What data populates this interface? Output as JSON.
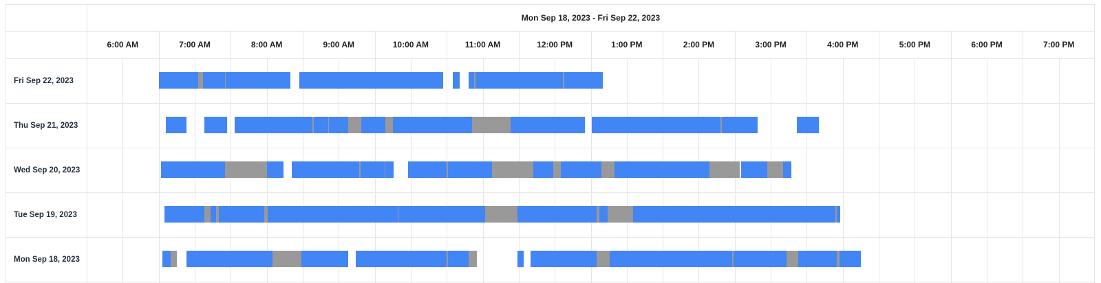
{
  "header": {
    "title": "Mon Sep 18, 2023 - Fri Sep 22, 2023"
  },
  "hours": [
    "6:00 AM",
    "7:00 AM",
    "8:00 AM",
    "9:00 AM",
    "10:00 AM",
    "11:00 AM",
    "12:00 PM",
    "1:00 PM",
    "2:00 PM",
    "3:00 PM",
    "4:00 PM",
    "5:00 PM",
    "6:00 PM",
    "7:00 PM"
  ],
  "colors": {
    "active": "#4285f4",
    "idle": "#999999",
    "grid": "#e6e6e6"
  },
  "rows": [
    {
      "label": "Fri Sep 22, 2023",
      "segments": [
        [
          "07:00",
          "07:33",
          "active"
        ],
        [
          "07:33",
          "07:37",
          "idle"
        ],
        [
          "07:37",
          "07:55",
          "active"
        ],
        [
          "07:55",
          "07:56",
          "idle"
        ],
        [
          "07:56",
          "08:50",
          "active"
        ],
        [
          "08:57",
          "10:57",
          "active"
        ],
        [
          "11:05",
          "11:11",
          "active"
        ],
        [
          "11:18",
          "11:23",
          "active"
        ],
        [
          "11:23",
          "11:24",
          "idle"
        ],
        [
          "11:24",
          "12:37",
          "active"
        ],
        [
          "12:37",
          "12:38",
          "idle"
        ],
        [
          "12:38",
          "13:10",
          "active"
        ]
      ]
    },
    {
      "label": "Thu Sep 21, 2023",
      "segments": [
        [
          "07:06",
          "07:23",
          "active"
        ],
        [
          "07:38",
          "07:57",
          "active"
        ],
        [
          "08:03",
          "09:08",
          "active"
        ],
        [
          "09:08",
          "09:09",
          "idle"
        ],
        [
          "09:09",
          "09:21",
          "active"
        ],
        [
          "09:21",
          "09:22",
          "idle"
        ],
        [
          "09:22",
          "09:38",
          "active"
        ],
        [
          "09:38",
          "09:49",
          "idle"
        ],
        [
          "09:49",
          "10:09",
          "active"
        ],
        [
          "10:09",
          "10:15",
          "idle"
        ],
        [
          "10:15",
          "11:21",
          "active"
        ],
        [
          "11:21",
          "11:53",
          "idle"
        ],
        [
          "11:53",
          "12:55",
          "active"
        ],
        [
          "13:01",
          "14:48",
          "active"
        ],
        [
          "14:48",
          "14:49",
          "idle"
        ],
        [
          "14:49",
          "15:19",
          "active"
        ],
        [
          "15:52",
          "16:10",
          "active"
        ]
      ]
    },
    {
      "label": "Wed Sep 20, 2023",
      "segments": [
        [
          "07:02",
          "07:55",
          "active"
        ],
        [
          "07:55",
          "08:30",
          "idle"
        ],
        [
          "08:30",
          "08:44",
          "active"
        ],
        [
          "08:51",
          "09:47",
          "active"
        ],
        [
          "09:47",
          "09:48",
          "idle"
        ],
        [
          "09:48",
          "10:08",
          "active"
        ],
        [
          "10:08",
          "10:09",
          "idle"
        ],
        [
          "10:09",
          "10:16",
          "active"
        ],
        [
          "10:28",
          "11:00",
          "active"
        ],
        [
          "11:00",
          "11:01",
          "idle"
        ],
        [
          "11:01",
          "11:38",
          "active"
        ],
        [
          "11:38",
          "12:12",
          "idle"
        ],
        [
          "12:12",
          "12:29",
          "active"
        ],
        [
          "12:29",
          "12:35",
          "idle"
        ],
        [
          "12:35",
          "13:09",
          "active"
        ],
        [
          "13:09",
          "13:20",
          "idle"
        ],
        [
          "13:20",
          "14:39",
          "active"
        ],
        [
          "14:39",
          "15:04",
          "idle"
        ],
        [
          "15:05",
          "15:27",
          "active"
        ],
        [
          "15:27",
          "15:40",
          "idle"
        ],
        [
          "15:40",
          "15:47",
          "active"
        ]
      ]
    },
    {
      "label": "Tue Sep 19, 2023",
      "segments": [
        [
          "07:05",
          "07:38",
          "active"
        ],
        [
          "07:38",
          "07:43",
          "idle"
        ],
        [
          "07:43",
          "07:48",
          "active"
        ],
        [
          "07:48",
          "07:50",
          "idle"
        ],
        [
          "07:50",
          "08:28",
          "active"
        ],
        [
          "08:28",
          "08:31",
          "idle"
        ],
        [
          "08:31",
          "10:19",
          "active"
        ],
        [
          "10:19",
          "10:20",
          "idle"
        ],
        [
          "10:20",
          "11:32",
          "active"
        ],
        [
          "11:32",
          "11:59",
          "idle"
        ],
        [
          "11:59",
          "13:05",
          "active"
        ],
        [
          "13:05",
          "13:07",
          "idle"
        ],
        [
          "13:07",
          "13:14",
          "active"
        ],
        [
          "13:14",
          "13:35",
          "idle"
        ],
        [
          "13:35",
          "16:24",
          "active"
        ],
        [
          "16:24",
          "16:25",
          "idle"
        ],
        [
          "16:25",
          "16:28",
          "active"
        ]
      ]
    },
    {
      "label": "Mon Sep 18, 2023",
      "segments": [
        [
          "07:03",
          "07:10",
          "active"
        ],
        [
          "07:10",
          "07:15",
          "idle"
        ],
        [
          "07:23",
          "08:35",
          "active"
        ],
        [
          "08:35",
          "08:59",
          "idle"
        ],
        [
          "08:59",
          "09:38",
          "active"
        ],
        [
          "09:44",
          "11:00",
          "active"
        ],
        [
          "11:00",
          "11:01",
          "idle"
        ],
        [
          "11:01",
          "11:18",
          "active"
        ],
        [
          "11:18",
          "11:25",
          "idle"
        ],
        [
          "11:59",
          "12:04",
          "active"
        ],
        [
          "12:10",
          "13:05",
          "active"
        ],
        [
          "13:05",
          "13:16",
          "idle"
        ],
        [
          "13:16",
          "14:58",
          "active"
        ],
        [
          "14:58",
          "14:59",
          "idle"
        ],
        [
          "14:59",
          "15:43",
          "active"
        ],
        [
          "15:43",
          "15:53",
          "idle"
        ],
        [
          "15:53",
          "16:25",
          "active"
        ],
        [
          "16:25",
          "16:27",
          "idle"
        ],
        [
          "16:27",
          "16:45",
          "active"
        ]
      ]
    }
  ]
}
